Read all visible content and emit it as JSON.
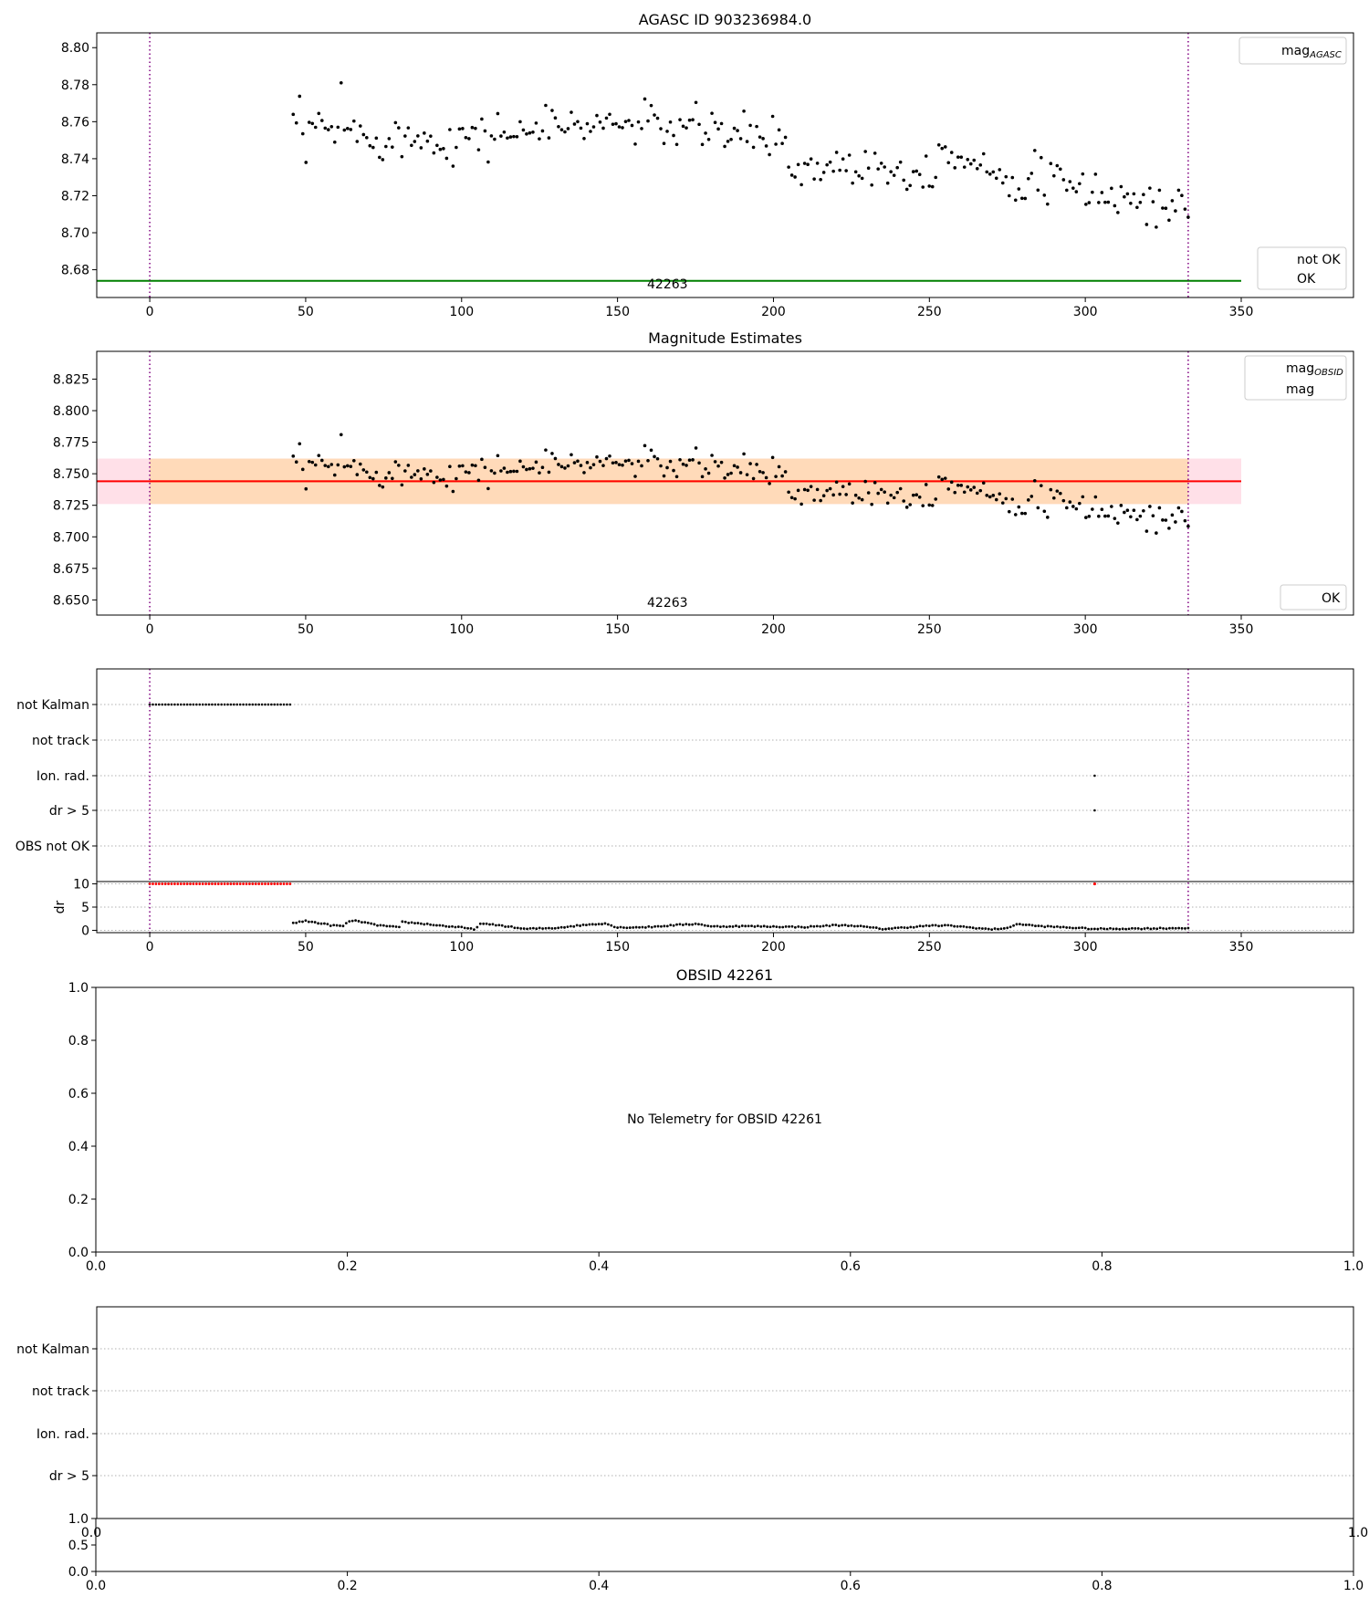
{
  "figure": {
    "panel1_title": "AGASC ID 903236984.0",
    "panel2_title": "Magnitude Estimates",
    "panel4_title": "OBSID 42261",
    "obsid_annotation": "42263",
    "no_telemetry_text": "No Telemetry for OBSID 42261",
    "legend1_line_label_main": "mag",
    "legend1_line_label_sub": "AGASC",
    "legend1_points": [
      "not OK",
      "OK"
    ],
    "legend2_line_labels": [
      {
        "main": "mag",
        "sub": "OBSID"
      },
      {
        "main": "mag",
        "sub": ""
      }
    ],
    "legend2_points": [
      "OK"
    ],
    "flag_labels": [
      "not Kalman",
      "not track",
      "Ion. rad.",
      "dr > 5",
      "OBS not OK"
    ],
    "flag_labels_panel6": [
      "not Kalman",
      "not track",
      "Ion. rad.",
      "dr > 5"
    ],
    "dr_ylabel": "dr"
  },
  "colors": {
    "agasc_line": "#008000",
    "mag_obsid_line": "#ffa500",
    "mag_line": "#ff0000",
    "obsid_band": "#ffdab9",
    "overall_band": "#ffe0e8",
    "boundary": "#800080",
    "ok_point": "#000000",
    "not_ok_point": "#ff0000"
  },
  "chart_data": [
    {
      "type": "scatter",
      "title": "AGASC ID 903236984.0",
      "xlim": [
        -17,
        386
      ],
      "ylim": [
        8.665,
        8.808
      ],
      "xticks": [
        0,
        50,
        100,
        150,
        200,
        250,
        300,
        350
      ],
      "yticks": [
        8.68,
        8.7,
        8.72,
        8.74,
        8.76,
        8.78,
        8.8
      ],
      "mag_agasc": 8.674,
      "obsid_boundaries": [
        0,
        333
      ],
      "annotation": {
        "text": "42263",
        "x": 166
      },
      "ok_points": {
        "x_start": 46,
        "x_end": 333,
        "n": 281
      },
      "legend": [
        "mag_AGASC",
        "not OK",
        "OK"
      ],
      "legend_placement": [
        "top-right",
        "lower-right"
      ]
    },
    {
      "type": "scatter",
      "title": "Magnitude Estimates",
      "xlim": [
        -17,
        386
      ],
      "ylim": [
        8.638,
        8.847
      ],
      "xticks": [
        0,
        50,
        100,
        150,
        200,
        250,
        300,
        350
      ],
      "yticks": [
        8.65,
        8.675,
        8.7,
        8.725,
        8.75,
        8.775,
        8.8,
        8.825
      ],
      "mag": 8.744,
      "mag_band": [
        8.726,
        8.762
      ],
      "mag_obsid": 8.744,
      "mag_obsid_band": [
        8.726,
        8.762
      ],
      "obsid_boundaries": [
        0,
        333
      ],
      "annotation": {
        "text": "42263",
        "x": 166
      },
      "legend": [
        "mag_OBSID",
        "mag",
        "OK"
      ],
      "legend_placement": [
        "top-right",
        "lower-right"
      ]
    },
    {
      "type": "scatter",
      "categories": [
        "not Kalman",
        "not track",
        "Ion. rad.",
        "dr > 5",
        "OBS not OK"
      ],
      "xlim": [
        -17,
        386
      ],
      "not_kalman": {
        "x_start": 0,
        "x_end": 45.5,
        "step": 1
      },
      "ion_rad_x": [
        303
      ],
      "dr_gt_5_x": [
        303
      ]
    },
    {
      "type": "scatter",
      "ylabel": "dr",
      "xlim": [
        -17,
        386
      ],
      "ylim": [
        -0.5,
        10.5
      ],
      "yticks": [
        0,
        5,
        10
      ],
      "xticks": [
        0,
        50,
        100,
        150,
        200,
        250,
        300,
        350
      ],
      "clipped_x": {
        "x_start": 0,
        "x_end": 45.5,
        "extra": [
          303
        ],
        "value": 10
      },
      "dr_anchors": [
        [
          46,
          1.6
        ],
        [
          50,
          2.0
        ],
        [
          55,
          1.5
        ],
        [
          58,
          1.1
        ],
        [
          62,
          0.9
        ],
        [
          64,
          2.0
        ],
        [
          67,
          2.0
        ],
        [
          72,
          1.2
        ],
        [
          80,
          0.6
        ],
        [
          81,
          1.8
        ],
        [
          88,
          1.4
        ],
        [
          95,
          0.9
        ],
        [
          100,
          0.6
        ],
        [
          104,
          0.2
        ],
        [
          106,
          1.4
        ],
        [
          112,
          1.1
        ],
        [
          120,
          0.3
        ],
        [
          130,
          0.5
        ],
        [
          140,
          1.2
        ],
        [
          146,
          1.5
        ],
        [
          150,
          0.6
        ],
        [
          160,
          0.7
        ],
        [
          170,
          1.2
        ],
        [
          176,
          1.4
        ],
        [
          180,
          0.8
        ],
        [
          190,
          0.9
        ],
        [
          200,
          0.8
        ],
        [
          210,
          0.7
        ],
        [
          220,
          1.1
        ],
        [
          226,
          1.0
        ],
        [
          235,
          0.3
        ],
        [
          240,
          0.5
        ],
        [
          250,
          1.0
        ],
        [
          257,
          1.0
        ],
        [
          265,
          0.5
        ],
        [
          270,
          0.2
        ],
        [
          276,
          0.6
        ],
        [
          278,
          1.4
        ],
        [
          285,
          0.9
        ],
        [
          295,
          0.6
        ],
        [
          303,
          0.3
        ],
        [
          320,
          0.4
        ],
        [
          333,
          0.5
        ]
      ]
    },
    {
      "type": "scatter",
      "title": "OBSID 42261",
      "xlim": [
        0,
        1
      ],
      "ylim": [
        0,
        1
      ],
      "xticks": [
        0.0,
        0.2,
        0.4,
        0.6,
        0.8,
        1.0
      ],
      "yticks": [
        0.0,
        0.2,
        0.4,
        0.6,
        0.8,
        1.0
      ],
      "annotation": "No Telemetry for OBSID 42261"
    },
    {
      "type": "scatter",
      "categories": [
        "not Kalman",
        "not track",
        "Ion. rad.",
        "dr > 5"
      ],
      "xlim": [
        0,
        1
      ]
    },
    {
      "type": "scatter",
      "xlim": [
        0,
        1
      ],
      "ylim": [
        0,
        1
      ],
      "xticks": [
        0.0,
        0.2,
        0.4,
        0.6,
        0.8,
        1.0
      ],
      "yticks": [
        0.0,
        0.5,
        1.0
      ]
    }
  ]
}
